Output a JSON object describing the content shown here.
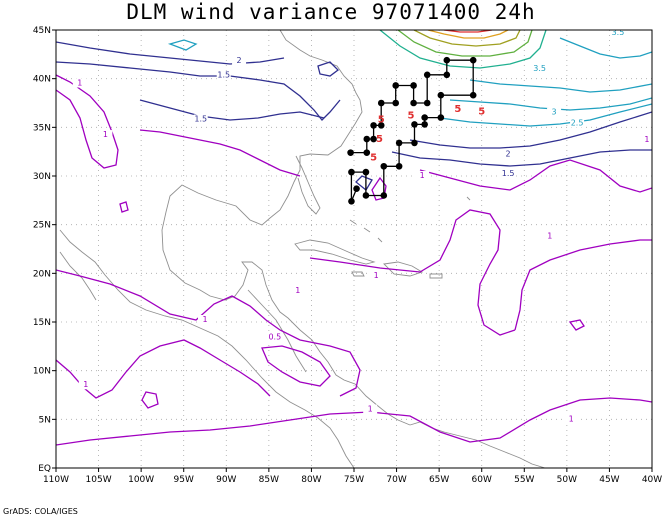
{
  "title": "DLM wind variance 97071400 24h",
  "credit": "GrADS: COLA/IGES",
  "axes": {
    "lon_labels": [
      "110W",
      "105W",
      "100W",
      "95W",
      "90W",
      "85W",
      "80W",
      "75W",
      "70W",
      "65W",
      "60W",
      "55W",
      "50W",
      "45W",
      "40W"
    ],
    "lat_labels": [
      "EQ",
      "5N",
      "10N",
      "15N",
      "20N",
      "25N",
      "30N",
      "35N",
      "40N",
      "45N"
    ]
  },
  "contour_labels": [
    {
      "text": "2",
      "lon": -88.5,
      "lat": 41.6,
      "color": "#303090"
    },
    {
      "text": "1.5",
      "lon": -90.3,
      "lat": 40.1,
      "color": "#303090"
    },
    {
      "text": "1.5",
      "lon": -93.0,
      "lat": 35.6,
      "color": "#303090"
    },
    {
      "text": "1",
      "lon": -104.2,
      "lat": 34.0,
      "color": "#a000c0"
    },
    {
      "text": "1",
      "lon": -107.2,
      "lat": 39.3,
      "color": "#a000c0"
    },
    {
      "text": "2",
      "lon": -56.9,
      "lat": 32.0,
      "color": "#303090"
    },
    {
      "text": "1.5",
      "lon": -56.9,
      "lat": 30.0,
      "color": "#303090"
    },
    {
      "text": "2.5",
      "lon": -48.8,
      "lat": 35.2,
      "color": "#20a0c0"
    },
    {
      "text": "3.5",
      "lon": -53.2,
      "lat": 40.8,
      "color": "#20a0c0"
    },
    {
      "text": "3",
      "lon": -51.5,
      "lat": 36.3,
      "color": "#20a0c0"
    },
    {
      "text": "3.5",
      "lon": -44.0,
      "lat": 44.5,
      "color": "#20a0c0"
    },
    {
      "text": "1",
      "lon": -40.6,
      "lat": 33.5,
      "color": "#a000c0"
    },
    {
      "text": "1",
      "lon": -52.0,
      "lat": 23.6,
      "color": "#a000c0"
    },
    {
      "text": "1",
      "lon": -81.6,
      "lat": 18.0,
      "color": "#a000c0"
    },
    {
      "text": "1",
      "lon": -92.5,
      "lat": 15.0,
      "color": "#a000c0"
    },
    {
      "text": "0.5",
      "lon": -84.3,
      "lat": 13.2,
      "color": "#a000c0"
    },
    {
      "text": "1",
      "lon": -106.5,
      "lat": 8.3,
      "color": "#a000c0"
    },
    {
      "text": "1",
      "lon": -73.1,
      "lat": 5.8,
      "color": "#a000c0"
    },
    {
      "text": "1",
      "lon": -67.0,
      "lat": 29.8,
      "color": "#a000c0"
    },
    {
      "text": "1",
      "lon": -72.4,
      "lat": 19.5,
      "color": "#a000c0"
    },
    {
      "text": "1",
      "lon": -49.5,
      "lat": 4.8,
      "color": "#a000c0"
    }
  ],
  "track_points": [
    [
      -74.7,
      28.7
    ],
    [
      -75.3,
      27.4
    ],
    [
      -75.3,
      30.4
    ],
    [
      -73.6,
      30.4
    ],
    [
      -73.6,
      28.0
    ],
    [
      -71.5,
      28.0
    ],
    [
      -71.5,
      31.0
    ],
    [
      -69.7,
      31.0
    ],
    [
      -69.7,
      33.4
    ],
    [
      -67.9,
      33.4
    ],
    [
      -67.9,
      35.3
    ],
    [
      -66.7,
      35.3
    ],
    [
      -66.7,
      36.0
    ],
    [
      -64.8,
      36.0
    ],
    [
      -64.8,
      38.3
    ],
    [
      -61.0,
      38.3
    ],
    [
      -61.0,
      41.9
    ],
    [
      -64.1,
      41.9
    ],
    [
      -64.1,
      40.4
    ],
    [
      -66.4,
      40.4
    ],
    [
      -66.4,
      37.5
    ],
    [
      -68.0,
      37.5
    ],
    [
      -68.0,
      39.3
    ],
    [
      -70.1,
      39.3
    ],
    [
      -70.1,
      37.5
    ],
    [
      -71.8,
      37.5
    ],
    [
      -71.8,
      35.2
    ],
    [
      -72.7,
      35.2
    ],
    [
      -72.7,
      33.8
    ],
    [
      -73.5,
      33.8
    ],
    [
      -73.5,
      32.4
    ],
    [
      -75.4,
      32.4
    ]
  ],
  "red_labels": [
    {
      "text": "5",
      "lon": -71.8,
      "lat": 35.5
    },
    {
      "text": "5",
      "lon": -72.0,
      "lat": 33.5
    },
    {
      "text": "5",
      "lon": -68.3,
      "lat": 35.9
    },
    {
      "text": "5",
      "lon": -72.7,
      "lat": 31.6
    },
    {
      "text": "5",
      "lon": -62.8,
      "lat": 36.6
    },
    {
      "text": "5",
      "lon": -60.0,
      "lat": 36.3
    }
  ],
  "colors": {
    "purple": "#a000c0",
    "navy": "#303090",
    "cyan": "#20a0c0",
    "teal": "#20b090",
    "green": "#60b040",
    "olive": "#a0a020",
    "orange": "#e0a020",
    "red": "#e03030",
    "coast": "#909090",
    "track": "#000000",
    "grid": "#a8a8a8"
  }
}
